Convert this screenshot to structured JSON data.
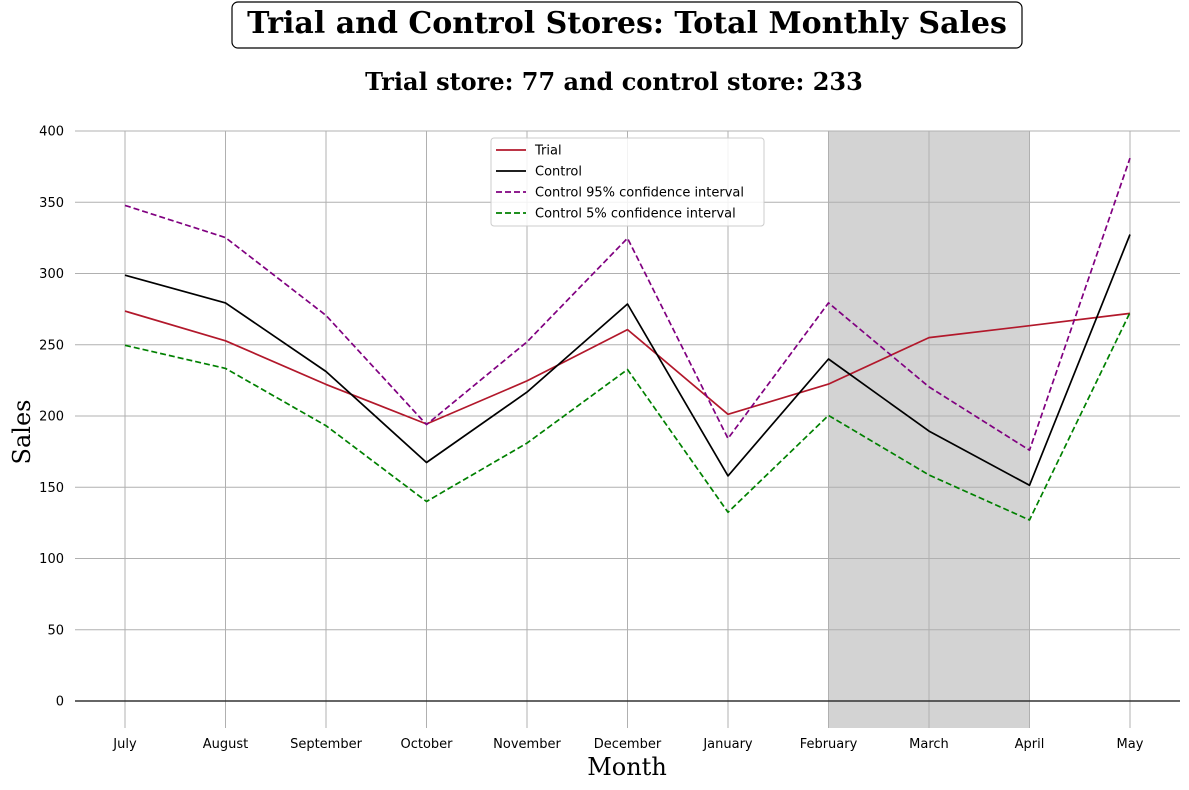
{
  "chart_data": {
    "type": "line",
    "title": "Trial and Control Stores: Total Monthly Sales",
    "subtitle": "Trial store: 77 and control store: 233",
    "xlabel": "Month",
    "ylabel": "Sales",
    "categories": [
      "July",
      "August",
      "September",
      "October",
      "November",
      "December",
      "January",
      "February",
      "March",
      "April",
      "May"
    ],
    "ylim": [
      -19,
      400
    ],
    "yticks": [
      0,
      50,
      100,
      150,
      200,
      250,
      300,
      350,
      400
    ],
    "grid": true,
    "legend_position": "top-center",
    "highlight_range": [
      "February",
      "April"
    ],
    "highlight_color": "#d3d3d3",
    "series": [
      {
        "name": "Trial",
        "color": "#b2182b",
        "dash": "solid",
        "values": [
          273.6,
          252.8,
          222.2,
          194.4,
          224.6,
          260.6,
          201.2,
          222.4,
          255.0,
          263.4,
          272.0
        ]
      },
      {
        "name": "Control",
        "color": "#000000",
        "dash": "solid",
        "values": [
          298.8,
          279.4,
          231.2,
          167.4,
          216.8,
          278.6,
          158.0,
          240.0,
          189.4,
          151.4,
          327.4
        ]
      },
      {
        "name": "Control 95% confidence interval",
        "color": "#800080",
        "dash": "dashed",
        "values": [
          347.8,
          325.2,
          270.6,
          194.0,
          252.0,
          324.8,
          184.2,
          279.4,
          220.4,
          176.0,
          381.0
        ]
      },
      {
        "name": "Control 5% confidence interval",
        "color": "#008000",
        "dash": "dashed",
        "values": [
          249.6,
          233.4,
          193.2,
          140.0,
          181.0,
          232.6,
          132.4,
          200.4,
          158.6,
          127.0,
          272.6
        ]
      }
    ]
  }
}
